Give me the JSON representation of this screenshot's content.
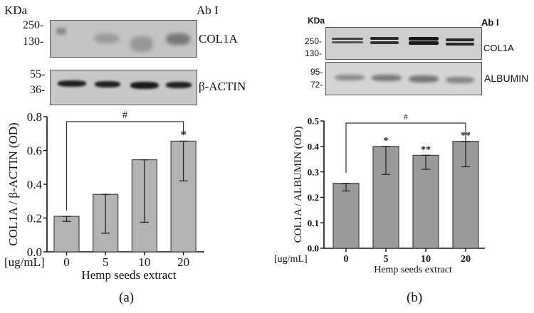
{
  "panel_a": {
    "kda_label": "KDa",
    "ab_label": "Ab I",
    "blot_top": {
      "label": "COL1A",
      "markers": [
        "250-",
        "130-"
      ]
    },
    "blot_bottom": {
      "label": "β-ACTIN",
      "markers": [
        "55-",
        "36-"
      ]
    },
    "caption": "(a)"
  },
  "panel_b": {
    "kda_label": "KDa",
    "ab_label": "Ab I",
    "blot_top": {
      "label": "COL1A",
      "markers": [
        "250-",
        "130-"
      ]
    },
    "blot_bottom": {
      "label": "ALBUMIN",
      "markers": [
        "95-",
        "72-"
      ]
    },
    "caption": "(b)"
  },
  "colors": {
    "bar_a": "#b3b3b3",
    "bar_b": "#9a9a9a",
    "axis": "#111111",
    "blot_bg": "#bdbdbd"
  },
  "chart_data": [
    {
      "type": "bar",
      "title": "",
      "categories": [
        "0",
        "5",
        "10",
        "20"
      ],
      "unit_label": "[ug/mL]",
      "xlabel": "Hemp seeds extract",
      "ylabel": "COL1A / β-ACTIN (OD)",
      "ylim": [
        0,
        0.8
      ],
      "yticks": [
        "0.0",
        "0.2",
        "0.4",
        "0.6",
        "0.8"
      ],
      "values": [
        0.21,
        0.34,
        0.545,
        0.655
      ],
      "error_low": [
        0.18,
        0.11,
        0.175,
        0.42
      ],
      "significance": [
        "",
        "",
        "",
        "*"
      ],
      "bracket": {
        "from": "0",
        "to": "20",
        "label": "#"
      },
      "grid": false
    },
    {
      "type": "bar",
      "title": "",
      "categories": [
        "0",
        "5",
        "10",
        "20"
      ],
      "unit_label": "[ug/mL]",
      "xlabel": "Hemp seeds extract",
      "ylabel": "COL1A / ALBUMIN (OD)",
      "ylim": [
        0,
        0.5
      ],
      "yticks": [
        "0.0",
        "0.1",
        "0.2",
        "0.3",
        "0.4",
        "0.5"
      ],
      "values": [
        0.255,
        0.4,
        0.365,
        0.42
      ],
      "error_low": [
        0.225,
        0.29,
        0.31,
        0.32
      ],
      "significance": [
        "",
        "*",
        "**",
        "**"
      ],
      "bracket": {
        "from": "0",
        "to": "20",
        "label": "#"
      },
      "grid": false
    }
  ]
}
